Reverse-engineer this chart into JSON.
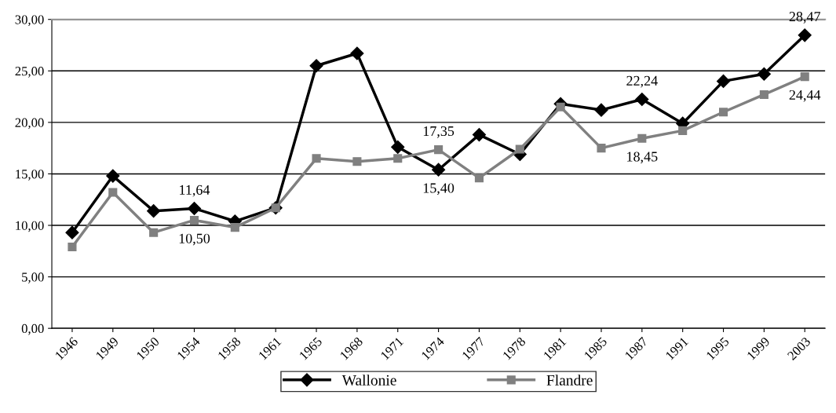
{
  "chart_data": {
    "type": "line",
    "categories": [
      "1946",
      "1949",
      "1950",
      "1954",
      "1958",
      "1961",
      "1965",
      "1968",
      "1971",
      "1974",
      "1977",
      "1978",
      "1981",
      "1985",
      "1987",
      "1991",
      "1995",
      "1999",
      "2003"
    ],
    "series": [
      {
        "name": "Wallonie",
        "color": "#000000",
        "marker": "diamond",
        "values": [
          9.3,
          14.8,
          11.4,
          11.64,
          10.4,
          11.7,
          25.5,
          26.7,
          17.6,
          15.4,
          18.8,
          16.9,
          21.8,
          21.2,
          22.24,
          19.9,
          24.0,
          24.7,
          28.47
        ],
        "value_labels": [
          null,
          null,
          null,
          "11,64",
          null,
          null,
          null,
          null,
          null,
          "15,40",
          null,
          null,
          null,
          null,
          "22,24",
          null,
          null,
          null,
          "28,47"
        ]
      },
      {
        "name": "Flandre",
        "color": "#808080",
        "marker": "square",
        "values": [
          7.9,
          13.2,
          9.3,
          10.5,
          9.8,
          11.7,
          16.5,
          16.2,
          16.5,
          17.35,
          14.6,
          17.4,
          21.5,
          17.5,
          18.45,
          19.2,
          21.0,
          22.7,
          24.44
        ],
        "value_labels": [
          null,
          null,
          null,
          "10,50",
          null,
          null,
          null,
          null,
          null,
          "17,35",
          null,
          null,
          null,
          null,
          "18,45",
          null,
          null,
          null,
          "24,44"
        ]
      }
    ],
    "ylim": [
      0,
      30
    ],
    "yticks": [
      {
        "value": 0,
        "label": "0,00"
      },
      {
        "value": 5,
        "label": "5,00"
      },
      {
        "value": 10,
        "label": "10,00"
      },
      {
        "value": 15,
        "label": "15,00"
      },
      {
        "value": 20,
        "label": "20,00"
      },
      {
        "value": 25,
        "label": "25,00"
      },
      {
        "value": 30,
        "label": "30,00"
      }
    ],
    "grid": "y",
    "legend": "bottom",
    "line_style": "solid"
  }
}
